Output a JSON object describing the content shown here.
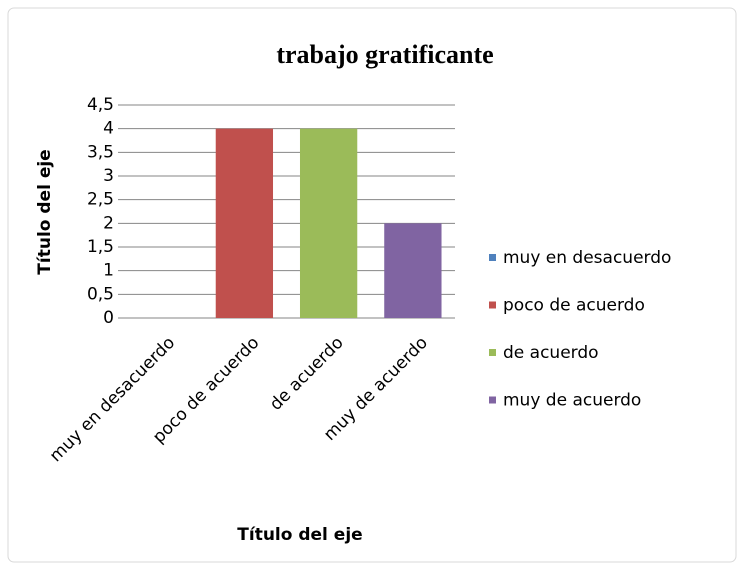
{
  "chart_data": {
    "type": "bar",
    "title": "trabajo gratificante",
    "x_label": "Título del eje",
    "y_label": "Título del eje",
    "categories": [
      "muy en desacuerdo",
      "poco de acuerdo",
      "de acuerdo",
      "muy de acuerdo"
    ],
    "values": [
      0,
      4,
      4,
      2
    ],
    "colors": [
      "#4f81bd",
      "#c0504d",
      "#9bbb59",
      "#8064a2"
    ],
    "ylim": [
      0,
      4.5
    ],
    "yticks": [
      0,
      {
        "value": 0.5,
        "label": "0,5"
      },
      1,
      {
        "value": 1.5,
        "label": "1,5"
      },
      2,
      {
        "value": 2.5,
        "label": "2,5"
      },
      3,
      {
        "value": 3.5,
        "label": "3,5"
      },
      4,
      {
        "value": 4.5,
        "label": "4,5"
      }
    ],
    "grid": true,
    "legend": "right"
  }
}
